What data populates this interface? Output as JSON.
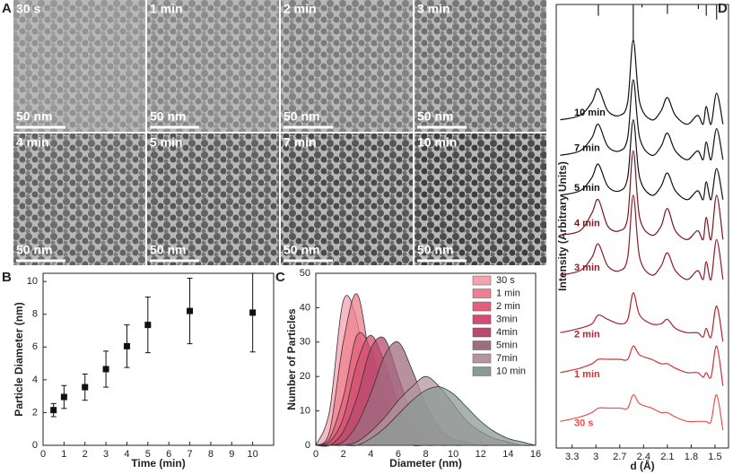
{
  "panel_labels": [
    "A",
    "B",
    "C",
    "D"
  ],
  "micrographs": [
    {
      "label": "30 s",
      "scale": "50 nm"
    },
    {
      "label": "1 min",
      "scale": "50 nm"
    },
    {
      "label": "2 min",
      "scale": "50 nm"
    },
    {
      "label": "3 min",
      "scale": "50 nm"
    },
    {
      "label": "4 min",
      "scale": "50 nm"
    },
    {
      "label": "5 min",
      "scale": "50 nm"
    },
    {
      "label": "7 min",
      "scale": "50 nm"
    },
    {
      "label": "10 min",
      "scale": "50 nm"
    }
  ],
  "chart_data": [
    {
      "type": "scatter",
      "x_label": "Time (min)",
      "y_label": "Particle Diameter (nm)",
      "x": [
        0.5,
        1,
        2,
        3,
        4,
        5,
        7,
        10
      ],
      "values": [
        2.15,
        2.95,
        3.55,
        4.65,
        6.05,
        7.35,
        8.2,
        8.1
      ],
      "errors": [
        0.4,
        0.7,
        0.8,
        1.1,
        1.3,
        1.7,
        2.0,
        2.4
      ],
      "color": "#111111",
      "xlim": [
        0,
        11
      ],
      "xticks": [
        0,
        1,
        2,
        3,
        4,
        5,
        6,
        7,
        8,
        9,
        10
      ],
      "ylim": [
        0,
        10.5
      ],
      "yticks": [
        0,
        2,
        4,
        6,
        8,
        10
      ]
    },
    {
      "type": "area",
      "x_label": "Diameter (nm)",
      "y_label": "Number of Particles",
      "x": [
        0,
        1,
        2,
        3,
        4,
        5,
        6,
        7,
        8,
        9,
        10,
        11,
        12,
        13,
        14,
        15,
        16
      ],
      "series": [
        {
          "name": "30 s",
          "color": "#f4a3ae",
          "values": [
            0,
            10,
            42,
            36,
            12,
            3,
            1,
            0,
            0,
            0,
            0,
            0,
            0,
            0,
            0,
            0,
            0
          ]
        },
        {
          "name": "1 min",
          "color": "#ef7f8e",
          "values": [
            0,
            4,
            30,
            44,
            24,
            8,
            2,
            0,
            0,
            0,
            0,
            0,
            0,
            0,
            0,
            0,
            0
          ]
        },
        {
          "name": "2 min",
          "color": "#e2607a",
          "values": [
            0,
            2,
            14,
            32,
            28,
            14,
            5,
            1,
            0,
            0,
            0,
            0,
            0,
            0,
            0,
            0,
            0
          ]
        },
        {
          "name": "3min",
          "color": "#d14d70",
          "values": [
            0,
            1,
            8,
            24,
            32,
            24,
            12,
            4,
            1,
            0,
            0,
            0,
            0,
            0,
            0,
            0,
            0
          ]
        },
        {
          "name": "4min",
          "color": "#b84a6e",
          "values": [
            0,
            0,
            4,
            14,
            28,
            31,
            20,
            9,
            3,
            1,
            0,
            0,
            0,
            0,
            0,
            0,
            0
          ]
        },
        {
          "name": "5min",
          "color": "#a06c80",
          "values": [
            0,
            0,
            1,
            6,
            15,
            26,
            30,
            22,
            12,
            5,
            2,
            1,
            0,
            0,
            0,
            0,
            0
          ]
        },
        {
          "name": "7min",
          "color": "#b3969e",
          "values": [
            0,
            0,
            0,
            1,
            4,
            8,
            13,
            17,
            20,
            17,
            12,
            7,
            4,
            2,
            1,
            0,
            0
          ]
        },
        {
          "name": "10 min",
          "color": "#8c9a96",
          "values": [
            0,
            0,
            0,
            0,
            2,
            5,
            9,
            13,
            16,
            17,
            15,
            11,
            7,
            4,
            2,
            1,
            0
          ]
        }
      ],
      "xlim": [
        0,
        16
      ],
      "xticks": [
        0,
        2,
        4,
        6,
        8,
        10,
        12,
        14,
        16
      ],
      "ylim": [
        0,
        50
      ],
      "yticks": [
        0,
        10,
        20,
        30,
        40,
        50
      ],
      "legend": "top-right"
    },
    {
      "type": "line",
      "x_label": "d (Å)",
      "y_label": "Intensity (Arbitrary Units)",
      "x_reversed": true,
      "x": [
        3.45,
        3.2,
        3.05,
        2.97,
        2.85,
        2.7,
        2.6,
        2.53,
        2.45,
        2.3,
        2.18,
        2.1,
        2.0,
        1.85,
        1.72,
        1.65,
        1.61,
        1.55,
        1.48,
        1.4
      ],
      "series": [
        {
          "name": "10 min",
          "color": "#111111",
          "values": [
            74,
            75,
            78,
            81,
            76,
            75,
            78,
            92,
            78,
            74,
            76,
            79,
            75,
            73,
            75,
            73,
            77,
            73,
            80,
            73
          ]
        },
        {
          "name": "7 min",
          "color": "#111111",
          "values": [
            66,
            67,
            70,
            73,
            68,
            67,
            70,
            83,
            70,
            66,
            68,
            71,
            67,
            65,
            67,
            65,
            69,
            65,
            72,
            65
          ]
        },
        {
          "name": "5 min",
          "color": "#111111",
          "values": [
            57,
            58,
            61,
            64,
            59,
            58,
            61,
            74,
            61,
            57,
            59,
            62,
            58,
            56,
            58,
            56,
            60,
            56,
            63,
            56
          ]
        },
        {
          "name": "4 min",
          "color": "#7a1420",
          "values": [
            48,
            49,
            53,
            56,
            50,
            49,
            52,
            67,
            52,
            48,
            50,
            54,
            49,
            47,
            49,
            47,
            52,
            47,
            57,
            47
          ]
        },
        {
          "name": "3 min",
          "color": "#8e1a26",
          "values": [
            39,
            40,
            43,
            46,
            41,
            40,
            43,
            57,
            43,
            39,
            41,
            44,
            40,
            38,
            40,
            38,
            42,
            38,
            47,
            38
          ]
        },
        {
          "name": "2 min",
          "color": "#b3202c",
          "values": [
            26,
            27,
            28,
            30,
            29,
            28,
            29,
            35,
            30,
            28,
            28,
            29,
            27,
            26,
            26,
            25,
            27,
            25,
            32,
            24
          ]
        },
        {
          "name": "1 min",
          "color": "#d43038",
          "values": [
            17,
            18,
            19,
            20,
            20,
            20,
            20,
            23,
            21,
            20,
            19,
            19,
            18,
            17,
            17,
            16,
            17,
            16,
            23,
            14
          ]
        },
        {
          "name": "30 s",
          "color": "#e8504e",
          "values": [
            6,
            7,
            8,
            9,
            9,
            9,
            9,
            12,
            10,
            9,
            8,
            8,
            7,
            6,
            6,
            6,
            6,
            6,
            12,
            4
          ]
        }
      ],
      "reference_peaks": {
        "x": [
          2.97,
          2.53,
          2.42,
          2.1,
          1.71,
          1.61,
          1.48
        ],
        "values": [
          30,
          100,
          8,
          25,
          12,
          30,
          40
        ]
      },
      "xlim": [
        3.5,
        1.33
      ],
      "xticks": [
        3.3,
        3,
        2.7,
        2.4,
        2.1,
        1.8,
        1.5
      ],
      "ylim": [
        0,
        100
      ]
    }
  ]
}
